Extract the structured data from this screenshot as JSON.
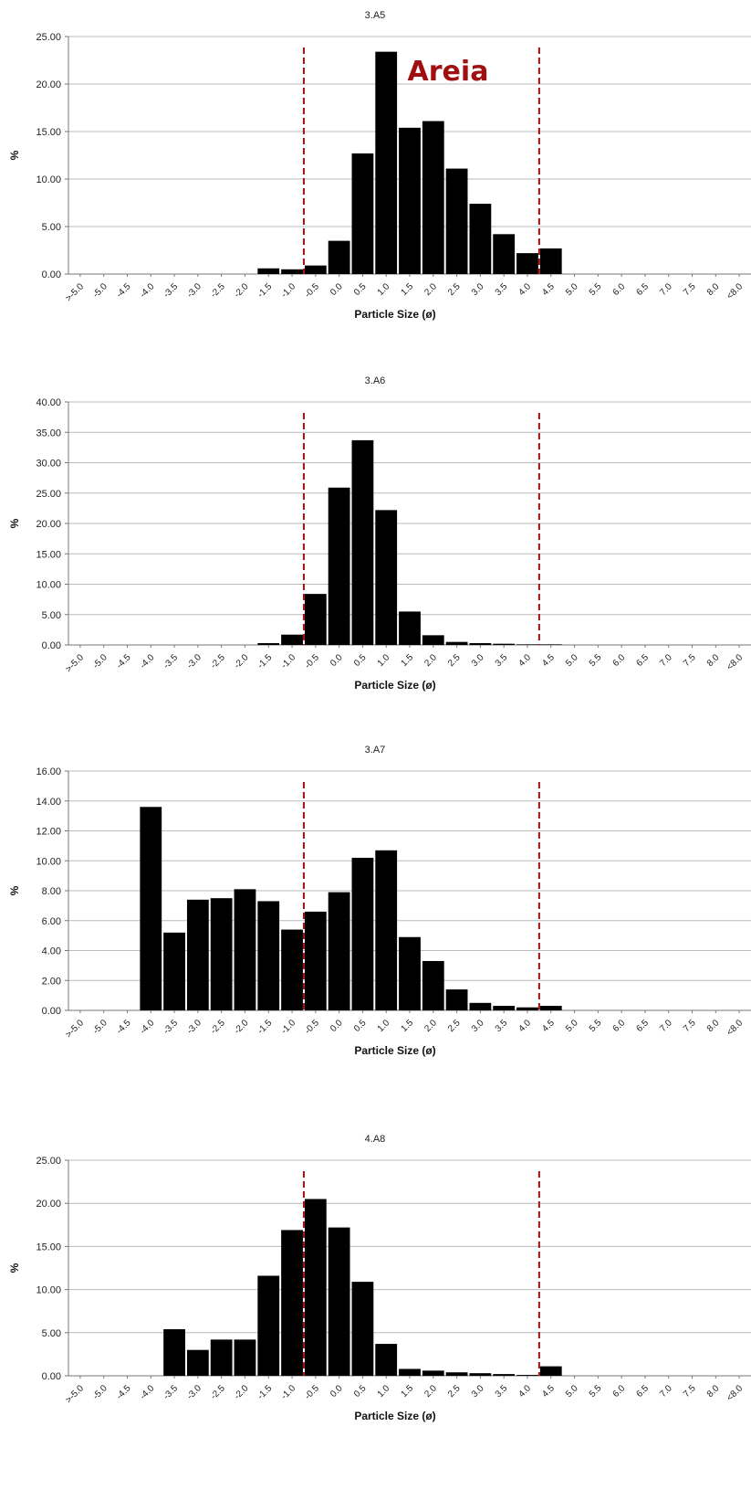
{
  "chart_data": [
    {
      "type": "bar",
      "title": "3.A5",
      "xlabel": "Particle Size (ø)",
      "ylabel": "%",
      "ylim": [
        0,
        25
      ],
      "yticks": [
        "0.00",
        "5.00",
        "10.00",
        "15.00",
        "20.00",
        "25.00"
      ],
      "categories": [
        ">-5.0",
        "-5.0",
        "-4.5",
        "-4.0",
        "-3.5",
        "-3.0",
        "-2.5",
        "-2.0",
        "-1.5",
        "-1.0",
        "-0.5",
        "0.0",
        "0.5",
        "1.0",
        "1.5",
        "2.0",
        "2.5",
        "3.0",
        "3.5",
        "4.0",
        "4.5",
        "5.0",
        "5.5",
        "6.0",
        "6.5",
        "7.0",
        "7.5",
        "8.0",
        "<8.0"
      ],
      "values": [
        0,
        0,
        0,
        0,
        0,
        0,
        0,
        0,
        0.6,
        0.5,
        0.9,
        3.5,
        12.7,
        23.4,
        15.4,
        16.1,
        11.1,
        7.4,
        4.2,
        2.2,
        2.7,
        0,
        0,
        0,
        0,
        0,
        0,
        0,
        0
      ],
      "reference_lines": [
        "-0.5",
        "4.5"
      ],
      "annotation": "Areia",
      "grid": true,
      "legend": "none"
    },
    {
      "type": "bar",
      "title": "3.A6",
      "xlabel": "Particle Size (ø)",
      "ylabel": "%",
      "ylim": [
        0,
        40
      ],
      "yticks": [
        "0.00",
        "5.00",
        "10.00",
        "15.00",
        "20.00",
        "25.00",
        "30.00",
        "35.00",
        "40.00"
      ],
      "categories": [
        ">-5.0",
        "-5.0",
        "-4.5",
        "-4.0",
        "-3.5",
        "-3.0",
        "-2.5",
        "-2.0",
        "-1.5",
        "-1.0",
        "-0.5",
        "0.0",
        "0.5",
        "1.0",
        "1.5",
        "2.0",
        "2.5",
        "3.0",
        "3.5",
        "4.0",
        "4.5",
        "5.0",
        "5.5",
        "6.0",
        "6.5",
        "7.0",
        "7.5",
        "8.0",
        "<8.0"
      ],
      "values": [
        0,
        0,
        0,
        0,
        0,
        0,
        0,
        0,
        0.3,
        1.7,
        8.4,
        25.9,
        33.7,
        22.2,
        5.5,
        1.6,
        0.5,
        0.3,
        0.2,
        0.1,
        0.1,
        0,
        0,
        0,
        0,
        0,
        0,
        0,
        0
      ],
      "reference_lines": [
        "-0.5",
        "4.5"
      ],
      "grid": true,
      "legend": "none"
    },
    {
      "type": "bar",
      "title": "3.A7",
      "xlabel": "Particle Size (ø)",
      "ylabel": "%",
      "ylim": [
        0,
        16
      ],
      "yticks": [
        "0.00",
        "2.00",
        "4.00",
        "6.00",
        "8.00",
        "10.00",
        "12.00",
        "14.00",
        "16.00"
      ],
      "categories": [
        ">-5.0",
        "-5.0",
        "-4.5",
        "-4.0",
        "-3.5",
        "-3.0",
        "-2.5",
        "-2.0",
        "-1.5",
        "-1.0",
        "-0.5",
        "0.0",
        "0.5",
        "1.0",
        "1.5",
        "2.0",
        "2.5",
        "3.0",
        "3.5",
        "4.0",
        "4.5",
        "5.0",
        "5.5",
        "6.0",
        "6.5",
        "7.0",
        "7.5",
        "8.0",
        "<8.0"
      ],
      "values": [
        0,
        0,
        0,
        13.6,
        5.2,
        7.4,
        7.5,
        8.1,
        7.3,
        5.4,
        6.6,
        7.9,
        10.2,
        10.7,
        4.9,
        3.3,
        1.4,
        0.5,
        0.3,
        0.2,
        0.3,
        0,
        0,
        0,
        0,
        0,
        0,
        0,
        0
      ],
      "reference_lines": [
        "-0.5",
        "4.5"
      ],
      "grid": true,
      "legend": "none"
    },
    {
      "type": "bar",
      "title": "4.A8",
      "xlabel": "Particle Size (ø)",
      "ylabel": "%",
      "ylim": [
        0,
        25
      ],
      "yticks": [
        "0.00",
        "5.00",
        "10.00",
        "15.00",
        "20.00",
        "25.00"
      ],
      "categories": [
        ">-5.0",
        "-5.0",
        "-4.5",
        "-4.0",
        "-3.5",
        "-3.0",
        "-2.5",
        "-2.0",
        "-1.5",
        "-1.0",
        "-0.5",
        "0.0",
        "0.5",
        "1.0",
        "1.5",
        "2.0",
        "2.5",
        "3.0",
        "3.5",
        "4.0",
        "4.5",
        "5.0",
        "5.5",
        "6.0",
        "6.5",
        "7.0",
        "7.5",
        "8.0",
        "<8.0"
      ],
      "values": [
        0,
        0,
        0,
        0,
        5.4,
        3.0,
        4.2,
        4.2,
        11.6,
        16.9,
        20.5,
        17.2,
        10.9,
        3.7,
        0.8,
        0.6,
        0.4,
        0.3,
        0.2,
        0.1,
        1.1,
        0,
        0,
        0,
        0,
        0,
        0,
        0,
        0
      ],
      "reference_lines": [
        "-0.5",
        "4.5"
      ],
      "grid": true,
      "legend": "none"
    }
  ],
  "colors": {
    "bar": "#000000",
    "reference_line": "#a01010",
    "annotation": "#a01010",
    "grid": "#bbbbbb",
    "axis": "#777777"
  }
}
